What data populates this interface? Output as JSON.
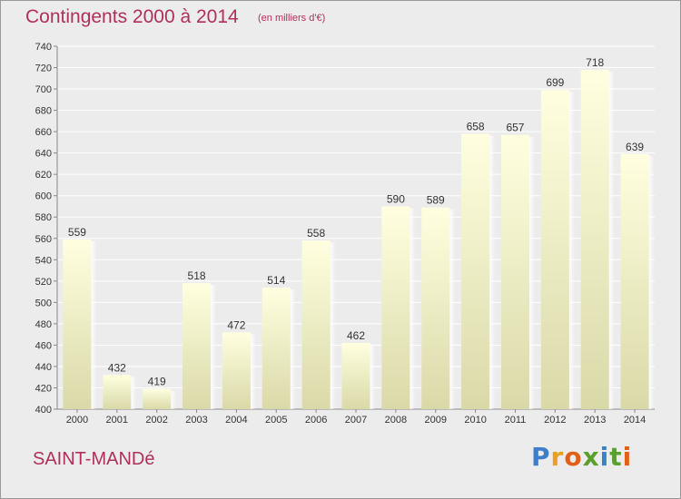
{
  "header": {
    "title": "Contingents 2000 à 2014",
    "subtitle": "(en milliers d'€)"
  },
  "footer": {
    "place": "SAINT-MANDé",
    "logo_text": "Proxiti"
  },
  "colors": {
    "title": "#b0305a",
    "bar_top": "#ffffe0",
    "bar_bottom": "#d9d9a8",
    "logo_letters": [
      "#3d7fc8",
      "#e8a020",
      "#e06018",
      "#5aa02c",
      "#3d7fc8",
      "#5aa02c",
      "#e06018"
    ]
  },
  "chart_data": {
    "type": "bar",
    "title": "Contingents 2000 à 2014",
    "subtitle": "(en milliers d'€)",
    "categories": [
      "2000",
      "2001",
      "2002",
      "2003",
      "2004",
      "2005",
      "2006",
      "2007",
      "2008",
      "2009",
      "2010",
      "2011",
      "2012",
      "2013",
      "2014"
    ],
    "values": [
      559,
      432,
      419,
      518,
      472,
      514,
      558,
      462,
      590,
      589,
      658,
      657,
      699,
      718,
      639
    ],
    "ylim": [
      400,
      740
    ],
    "yticks": [
      400,
      420,
      440,
      460,
      480,
      500,
      520,
      540,
      560,
      580,
      600,
      620,
      640,
      660,
      680,
      700,
      720,
      740
    ],
    "grid": true,
    "data_labels": true
  }
}
